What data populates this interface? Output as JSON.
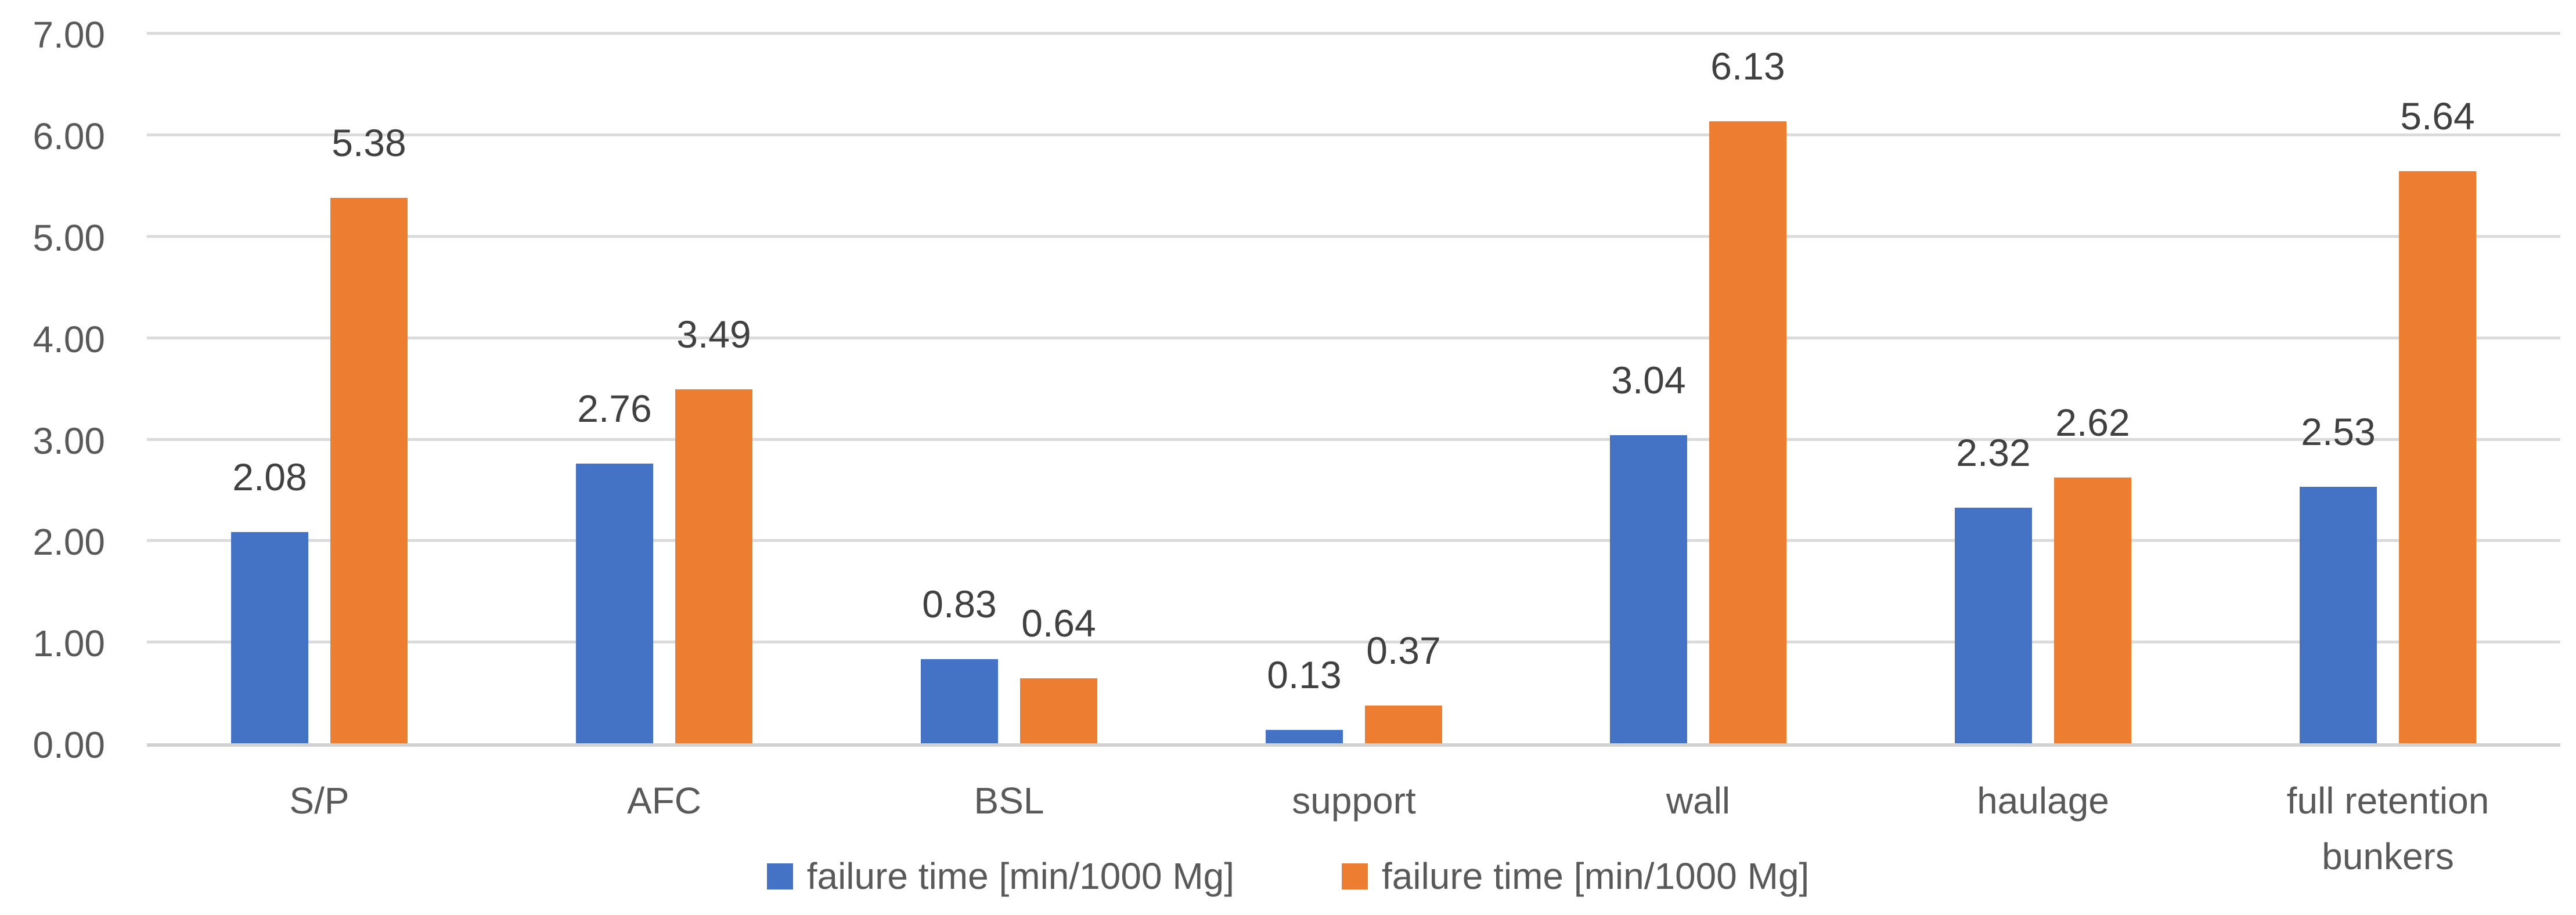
{
  "chart_data": {
    "type": "bar",
    "title": "",
    "categories": [
      "S/P",
      "AFC",
      "BSL",
      "support",
      "wall",
      "haulage",
      "full retention bunkers"
    ],
    "series": [
      {
        "name": "failure time [min/1000 Mg]",
        "color": "#4472C4",
        "values": [
          2.08,
          2.76,
          0.83,
          0.13,
          3.04,
          2.32,
          2.53
        ]
      },
      {
        "name": "failure time [min/1000 Mg]",
        "color": "#ED7D31",
        "values": [
          5.38,
          3.49,
          0.64,
          0.37,
          6.13,
          2.62,
          5.64
        ]
      }
    ],
    "y_axis": {
      "min": 0,
      "max": 7,
      "step": 1,
      "tick_labels": [
        "0.00",
        "1.00",
        "2.00",
        "3.00",
        "4.00",
        "5.00",
        "6.00",
        "7.00"
      ]
    },
    "data_labels": true,
    "value_format_decimals": 2,
    "grid": true,
    "legend_position": "bottom"
  },
  "colors": {
    "series1": "#4472C4",
    "series2": "#ED7D31",
    "gridline": "#dbdbdb",
    "axis_line": "#d2d2d2",
    "tick_text": "#595959",
    "label_text": "#404040",
    "background": "#ffffff"
  }
}
